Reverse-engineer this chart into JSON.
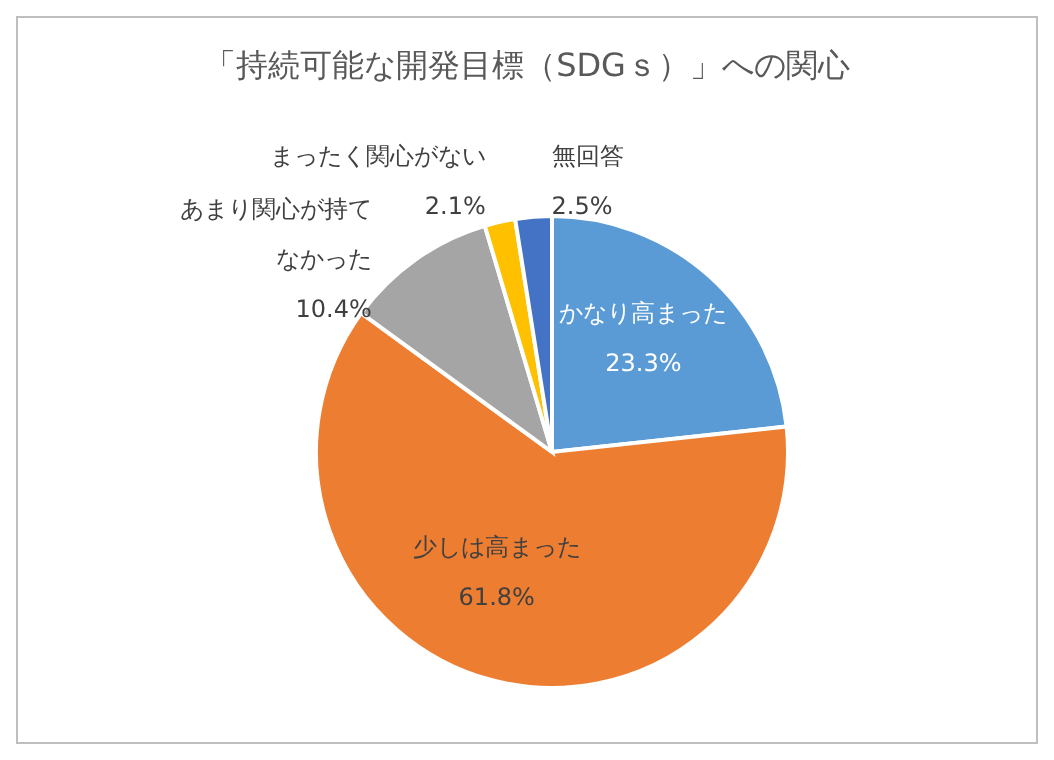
{
  "chart_data": {
    "type": "pie",
    "title": "「持続可能な開発目標（SDGｓ）」への関心",
    "categories": [
      "かなり高まった",
      "少しは高まった",
      "あまり関心が持てなかった",
      "まったく関心がない",
      "無回答"
    ],
    "values": [
      23.3,
      61.8,
      10.4,
      2.1,
      2.5
    ],
    "value_labels": [
      "23.3%",
      "61.8%",
      "10.4%",
      "2.1%",
      "2.5%"
    ],
    "colors": [
      "#5b9bd5",
      "#ed7d31",
      "#a5a5a5",
      "#ffc000",
      "#4472c4"
    ],
    "legend": false
  }
}
